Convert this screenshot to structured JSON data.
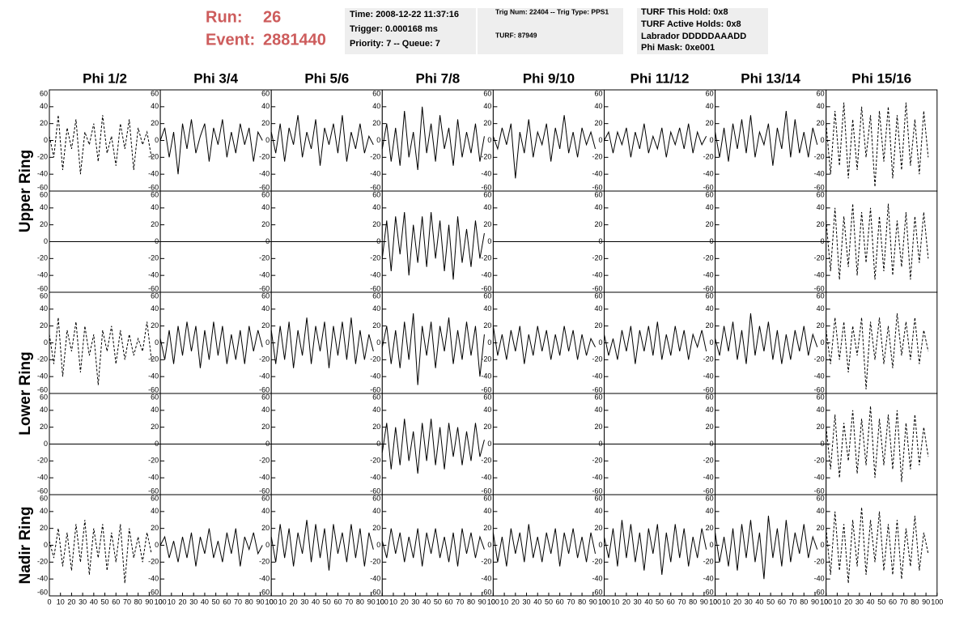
{
  "header": {
    "run_label": "Run:",
    "run": "26",
    "event_label": "Event:",
    "event": "2881440",
    "boxes": [
      [
        "Time: 2008-12-22 11:37:16",
        "Trigger: 0.000168 ms",
        "Priority: 7 -- Queue: 7"
      ],
      [
        "Trig Num: 22404 -- Trig Type: PPS1",
        "TURF: 87949"
      ],
      [
        "TURF This Hold: 0x8",
        "TURF Active Holds: 0x8",
        "Labrador DDDDDAAADD",
        "Phi Mask: 0xe001"
      ]
    ],
    "highlight_color": "#e000e0"
  },
  "chart_data": {
    "type": "line",
    "color": "#000000",
    "columns": [
      "Phi 1/2",
      "Phi 3/4",
      "Phi 5/6",
      "Phi 7/8",
      "Phi 9/10",
      "Phi 11/12",
      "Phi 13/14",
      "Phi 15/16"
    ],
    "rows": [
      "Upper Ring",
      "Lower Ring",
      "Nadir Ring"
    ],
    "xlim": [
      0,
      100
    ],
    "ylim": [
      -60,
      60
    ],
    "xticks": [
      0,
      10,
      20,
      30,
      40,
      50,
      60,
      70,
      80,
      90,
      100
    ],
    "yticks": [
      -60,
      -40,
      -20,
      0,
      20,
      40,
      60
    ],
    "x": [
      0,
      4,
      8,
      12,
      16,
      20,
      24,
      28,
      32,
      36,
      40,
      44,
      48,
      52,
      56,
      60,
      64,
      68,
      72,
      76,
      80,
      84,
      88,
      92
    ],
    "panels": [
      {
        "dashed": true,
        "values": [
          5,
          -20,
          30,
          -35,
          15,
          -10,
          25,
          -40,
          10,
          -5,
          20,
          -25,
          30,
          -15,
          5,
          -30,
          20,
          -10,
          25,
          -35,
          15,
          -5,
          10,
          -20
        ]
      },
      {
        "values": [
          0,
          15,
          -20,
          10,
          -40,
          20,
          -10,
          25,
          -15,
          5,
          20,
          -25,
          15,
          -5,
          25,
          -20,
          10,
          -15,
          20,
          -5,
          15,
          -25,
          10,
          0
        ]
      },
      {
        "values": [
          10,
          -15,
          20,
          -25,
          15,
          -5,
          30,
          -20,
          10,
          -10,
          25,
          -30,
          15,
          -5,
          20,
          -15,
          30,
          -25,
          10,
          -10,
          20,
          -15,
          5,
          -5
        ]
      },
      {
        "values": [
          -10,
          20,
          -25,
          15,
          -30,
          35,
          -20,
          10,
          -35,
          40,
          -15,
          20,
          -25,
          30,
          -10,
          15,
          -30,
          25,
          -20,
          10,
          -15,
          20,
          -25,
          5
        ]
      },
      {
        "values": [
          5,
          -10,
          15,
          -5,
          20,
          -45,
          10,
          -15,
          25,
          -20,
          10,
          -5,
          20,
          -25,
          15,
          -10,
          30,
          -15,
          10,
          -20,
          15,
          -5,
          10,
          -10
        ]
      },
      {
        "values": [
          0,
          10,
          -15,
          10,
          -5,
          15,
          -20,
          10,
          -10,
          20,
          -15,
          5,
          -10,
          15,
          -20,
          10,
          -5,
          15,
          -10,
          20,
          -15,
          10,
          -5,
          5
        ]
      },
      {
        "values": [
          10,
          -20,
          15,
          -25,
          20,
          -10,
          25,
          -15,
          30,
          -20,
          10,
          -5,
          20,
          -30,
          15,
          -10,
          35,
          -20,
          25,
          -15,
          10,
          -20,
          15,
          -5
        ]
      },
      {
        "dashed": true,
        "values": [
          20,
          -40,
          35,
          -30,
          45,
          -45,
          25,
          -35,
          40,
          -20,
          30,
          -55,
          35,
          -25,
          40,
          -45,
          30,
          -35,
          45,
          -30,
          25,
          -40,
          35,
          -20
        ]
      },
      {
        "x": [
          0,
          100
        ],
        "values": [
          0,
          0
        ]
      },
      {
        "x": [
          0,
          100
        ],
        "values": [
          0,
          0
        ]
      },
      {
        "x": [
          0,
          100
        ],
        "values": [
          0,
          0
        ]
      },
      {
        "values": [
          -20,
          25,
          -35,
          30,
          -15,
          35,
          -40,
          20,
          -25,
          30,
          -30,
          35,
          -20,
          25,
          -35,
          20,
          -45,
          30,
          -25,
          15,
          -30,
          25,
          -20,
          10
        ]
      },
      {
        "x": [
          0,
          100
        ],
        "values": [
          0,
          0
        ]
      },
      {
        "x": [
          0,
          100
        ],
        "values": [
          0,
          0
        ]
      },
      {
        "x": [
          0,
          100
        ],
        "values": [
          0,
          0
        ]
      },
      {
        "dashed": true,
        "values": [
          25,
          -35,
          40,
          -45,
          30,
          -30,
          45,
          -40,
          35,
          -25,
          40,
          -45,
          30,
          -35,
          45,
          -40,
          25,
          -30,
          35,
          -45,
          30,
          -25,
          35,
          -20
        ]
      },
      {
        "dashed": true,
        "values": [
          10,
          -25,
          30,
          -40,
          15,
          -10,
          25,
          -35,
          20,
          -15,
          10,
          -50,
          15,
          -10,
          20,
          -25,
          15,
          -20,
          10,
          -15,
          5,
          -10,
          25,
          -20
        ]
      },
      {
        "values": [
          5,
          -20,
          15,
          -25,
          20,
          -15,
          25,
          -10,
          20,
          -30,
          15,
          -20,
          25,
          -15,
          20,
          -25,
          10,
          -20,
          15,
          -25,
          20,
          -10,
          15,
          -5
        ]
      },
      {
        "values": [
          15,
          -25,
          20,
          -20,
          25,
          -30,
          15,
          -15,
          30,
          -25,
          20,
          -10,
          25,
          -30,
          20,
          -15,
          25,
          -20,
          30,
          -25,
          15,
          -20,
          10,
          -10
        ]
      },
      {
        "values": [
          -5,
          20,
          -25,
          15,
          -30,
          25,
          -20,
          35,
          -50,
          20,
          -15,
          25,
          -30,
          20,
          -10,
          30,
          -25,
          15,
          -20,
          25,
          -15,
          20,
          -40,
          10
        ]
      },
      {
        "values": [
          20,
          -15,
          10,
          -20,
          15,
          -10,
          20,
          -25,
          10,
          -15,
          20,
          -10,
          15,
          -20,
          10,
          -15,
          20,
          -10,
          15,
          -20,
          10,
          -15,
          5,
          -5
        ]
      },
      {
        "values": [
          10,
          -15,
          5,
          -20,
          15,
          -10,
          20,
          -25,
          15,
          -10,
          20,
          -15,
          25,
          -20,
          10,
          -15,
          20,
          -10,
          15,
          -20,
          10,
          -5,
          15,
          -10
        ]
      },
      {
        "values": [
          5,
          -15,
          20,
          -10,
          25,
          -20,
          15,
          -25,
          35,
          -15,
          20,
          -10,
          25,
          -20,
          15,
          -25,
          10,
          -20,
          15,
          -10,
          20,
          -15,
          10,
          -5
        ]
      },
      {
        "dashed": true,
        "values": [
          15,
          -25,
          30,
          -20,
          25,
          -35,
          20,
          -15,
          30,
          -55,
          25,
          -20,
          30,
          -25,
          20,
          -30,
          35,
          -15,
          25,
          -20,
          30,
          -25,
          15,
          -10
        ]
      },
      {
        "x": [
          0,
          100
        ],
        "values": [
          0,
          0
        ]
      },
      {
        "x": [
          0,
          100
        ],
        "values": [
          0,
          0
        ]
      },
      {
        "x": [
          0,
          100
        ],
        "values": [
          0,
          0
        ]
      },
      {
        "values": [
          -10,
          25,
          -30,
          20,
          -25,
          30,
          -20,
          15,
          -35,
          25,
          -20,
          30,
          -25,
          20,
          -30,
          25,
          -15,
          20,
          -25,
          15,
          -20,
          25,
          -15,
          5
        ]
      },
      {
        "x": [
          0,
          100
        ],
        "values": [
          0,
          0
        ]
      },
      {
        "x": [
          0,
          100
        ],
        "values": [
          0,
          0
        ]
      },
      {
        "x": [
          0,
          100
        ],
        "values": [
          0,
          0
        ]
      },
      {
        "dashed": true,
        "values": [
          20,
          -30,
          35,
          -40,
          25,
          -20,
          40,
          -35,
          30,
          -25,
          45,
          -40,
          30,
          -25,
          35,
          -30,
          40,
          -45,
          25,
          -30,
          35,
          -25,
          20,
          -15
        ]
      },
      {
        "dashed": true,
        "values": [
          5,
          -15,
          20,
          -25,
          15,
          -30,
          25,
          -20,
          30,
          -35,
          20,
          -15,
          25,
          -30,
          15,
          -20,
          25,
          -45,
          20,
          -15,
          10,
          -20,
          15,
          -10
        ]
      },
      {
        "values": [
          0,
          10,
          -15,
          5,
          -20,
          10,
          -15,
          15,
          -25,
          10,
          -10,
          20,
          -15,
          5,
          -20,
          15,
          -10,
          20,
          -25,
          10,
          -5,
          15,
          -10,
          0
        ]
      },
      {
        "values": [
          10,
          -20,
          25,
          -15,
          20,
          -25,
          15,
          -10,
          30,
          -20,
          25,
          -15,
          20,
          -30,
          25,
          -10,
          15,
          -20,
          25,
          -15,
          20,
          -25,
          15,
          -5
        ]
      },
      {
        "values": [
          5,
          -15,
          20,
          -10,
          15,
          -20,
          10,
          -15,
          20,
          -25,
          15,
          -10,
          20,
          -15,
          10,
          -20,
          15,
          -25,
          20,
          -10,
          15,
          -15,
          10,
          -5
        ]
      },
      {
        "values": [
          15,
          -20,
          10,
          -25,
          20,
          -10,
          15,
          -20,
          25,
          -15,
          10,
          -20,
          15,
          -10,
          20,
          -25,
          15,
          -10,
          20,
          -15,
          10,
          -20,
          15,
          -10
        ]
      },
      {
        "values": [
          10,
          -15,
          20,
          -25,
          30,
          -15,
          25,
          -20,
          15,
          -30,
          20,
          -10,
          25,
          -35,
          15,
          -20,
          25,
          -15,
          20,
          -25,
          10,
          -15,
          20,
          -5
        ]
      },
      {
        "values": [
          15,
          -20,
          10,
          -25,
          20,
          -30,
          25,
          -15,
          30,
          -20,
          15,
          -40,
          35,
          -15,
          20,
          -25,
          30,
          -20,
          15,
          -10,
          25,
          -15,
          10,
          -5
        ]
      },
      {
        "dashed": true,
        "values": [
          20,
          -35,
          40,
          -30,
          25,
          -45,
          30,
          -25,
          45,
          -35,
          30,
          -20,
          40,
          -30,
          25,
          -35,
          30,
          -40,
          20,
          -25,
          35,
          -30,
          15,
          -10
        ]
      }
    ]
  }
}
